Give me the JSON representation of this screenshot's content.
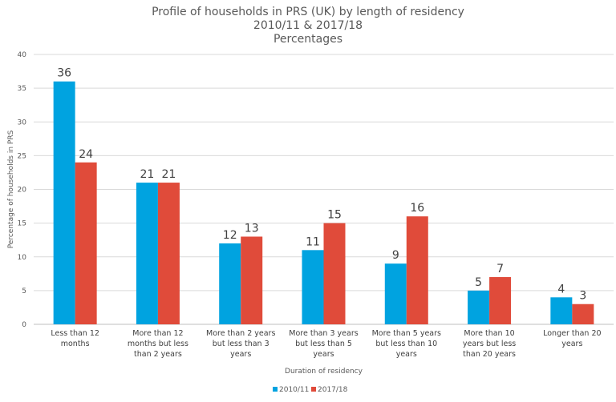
{
  "chart_data": {
    "type": "bar",
    "title": [
      "Profile of households in PRS (UK) by length of residency",
      "2010/11 & 2017/18",
      "Percentages"
    ],
    "xlabel": "Duration of residency",
    "ylabel": "Percentage of households in PRS",
    "ylim": [
      0,
      40
    ],
    "yticks": [
      0,
      5,
      10,
      15,
      20,
      25,
      30,
      35,
      40
    ],
    "grid": true,
    "legend_position": "bottom",
    "categories": [
      [
        "Less than 12",
        "months"
      ],
      [
        "More than 12",
        "months but less",
        "than 2 years"
      ],
      [
        "More than 2 years",
        "but less than 3",
        "years"
      ],
      [
        "More than 3 years",
        "but less than 5",
        "years"
      ],
      [
        "More than 5 years",
        "but less than 10",
        "years"
      ],
      [
        "More than 10",
        "years but less",
        "than 20 years"
      ],
      [
        "Longer than 20",
        "years"
      ]
    ],
    "series": [
      {
        "name": "2010/11",
        "color": "#00A3E0",
        "values": [
          36,
          21,
          12,
          11,
          9,
          5,
          4
        ]
      },
      {
        "name": "2017/18",
        "color": "#E04B3A",
        "values": [
          24,
          21,
          13,
          15,
          16,
          7,
          3
        ]
      }
    ]
  }
}
